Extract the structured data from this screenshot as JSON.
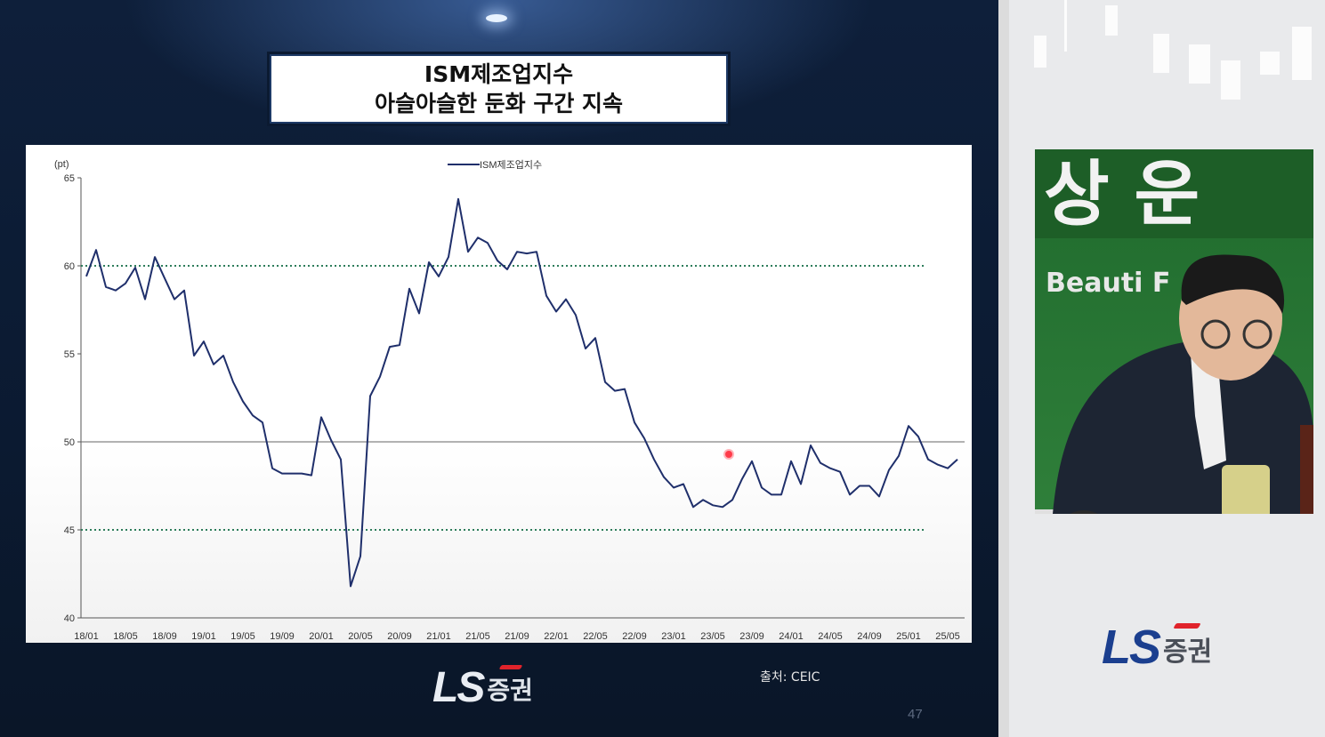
{
  "slide": {
    "title_line1": "ISM제조업지수",
    "title_line2": "아슬아슬한 둔화 구간 지속",
    "source": "출처: CEIC",
    "page_number": "47",
    "logo_ls": "LS",
    "logo_kr": "증권"
  },
  "right_panel": {
    "logo_ls": "LS",
    "logo_kr": "증권",
    "background_text": "Beauti   F"
  },
  "colors": {
    "series_line": "#1f2f6b",
    "reference_dots": "#2e7d5b",
    "slide_bg": "#0d1b33",
    "logo_blue": "#1b3f8f",
    "logo_red": "#e0232b"
  },
  "chart_data": {
    "type": "line",
    "ylabel": "(pt)",
    "ylim": [
      40,
      65
    ],
    "yticks": [
      40,
      45,
      50,
      55,
      60,
      65
    ],
    "xtick_labels": [
      "18/01",
      "18/05",
      "18/09",
      "19/01",
      "19/05",
      "19/09",
      "20/01",
      "20/05",
      "20/09",
      "21/01",
      "21/05",
      "21/09",
      "22/01",
      "22/05",
      "22/09",
      "23/01",
      "23/05",
      "23/09",
      "24/01",
      "24/05",
      "24/09",
      "25/01",
      "25/05"
    ],
    "x_start": "18/01",
    "x_end": "25/06",
    "reference_lines": [
      {
        "value": 50,
        "style": "solid"
      },
      {
        "value": 60,
        "style": "dotted"
      },
      {
        "value": 45,
        "style": "dotted"
      }
    ],
    "legend_position": "top-center",
    "series": [
      {
        "name": "ISM제조업지수",
        "values": [
          59.4,
          60.9,
          58.8,
          58.6,
          59.0,
          59.9,
          58.1,
          60.5,
          59.3,
          58.1,
          58.6,
          54.9,
          55.7,
          54.4,
          54.9,
          53.4,
          52.3,
          51.5,
          51.1,
          48.5,
          48.2,
          48.2,
          48.2,
          48.1,
          51.4,
          50.1,
          49.0,
          41.8,
          43.5,
          52.6,
          53.7,
          55.4,
          55.5,
          58.7,
          57.3,
          60.2,
          59.4,
          60.5,
          63.8,
          60.8,
          61.6,
          61.3,
          60.3,
          59.8,
          60.8,
          60.7,
          60.8,
          58.3,
          57.4,
          58.1,
          57.2,
          55.3,
          55.9,
          53.4,
          52.9,
          53.0,
          51.1,
          50.2,
          49.0,
          48.0,
          47.4,
          47.6,
          46.3,
          46.7,
          46.4,
          46.3,
          46.7,
          47.9,
          48.9,
          47.4,
          47.0,
          47.0,
          48.9,
          47.6,
          49.8,
          48.8,
          48.5,
          48.3,
          47.0,
          47.5,
          47.5,
          46.9,
          48.4,
          49.2,
          50.9,
          50.3,
          49.0,
          48.7,
          48.5,
          49.0
        ]
      }
    ]
  }
}
